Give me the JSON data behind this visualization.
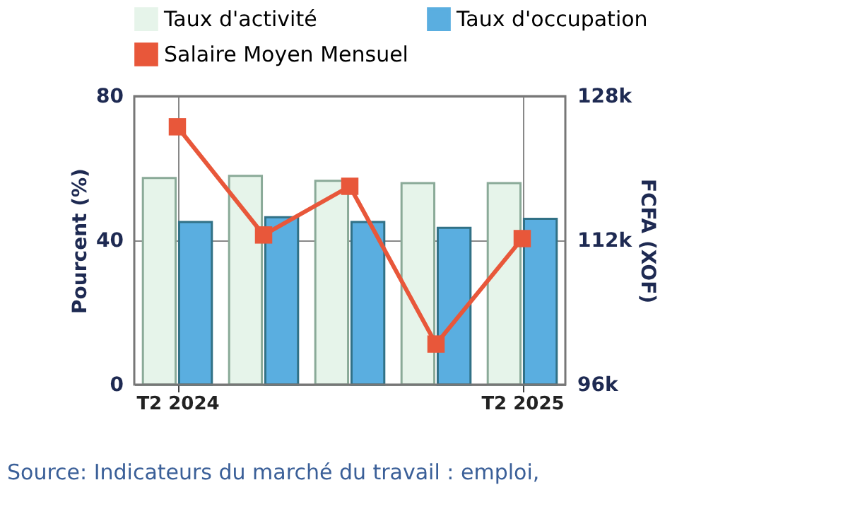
{
  "chart_data": {
    "type": "bar",
    "categories": [
      "T2 2024",
      null,
      null,
      null,
      "T2 2025"
    ],
    "series": [
      {
        "name": "Taux d'activité",
        "color": "#e6f4ea",
        "values": [
          57.3,
          57.9,
          56.5,
          55.9,
          55.9
        ]
      },
      {
        "name": "Taux d'occupation",
        "color": "#5aaee0",
        "values": [
          45.1,
          46.4,
          45.1,
          43.5,
          46.0
        ]
      },
      {
        "name": "Salaire Moyen Mensuel",
        "type": "line",
        "axis": "y2",
        "color": "#e8573a",
        "marker": "square",
        "line_style": "solid",
        "values": [
          124600,
          112600,
          118000,
          100500,
          112200
        ]
      }
    ],
    "ylabel": "Pourcent (%)",
    "y2label": "FCFA (XOF)",
    "ylim": [
      0,
      80
    ],
    "yticks": [
      0,
      40,
      80
    ],
    "y2lim": [
      96000,
      128000
    ],
    "y2ticks": [
      {
        "value": 96000,
        "label": "96k"
      },
      {
        "value": 112000,
        "label": "112k"
      },
      {
        "value": 128000,
        "label": "128k"
      }
    ],
    "grid": true,
    "legend": "top",
    "annotations": [
      "Source: Indicateurs du marché du travail : emploi,"
    ]
  }
}
